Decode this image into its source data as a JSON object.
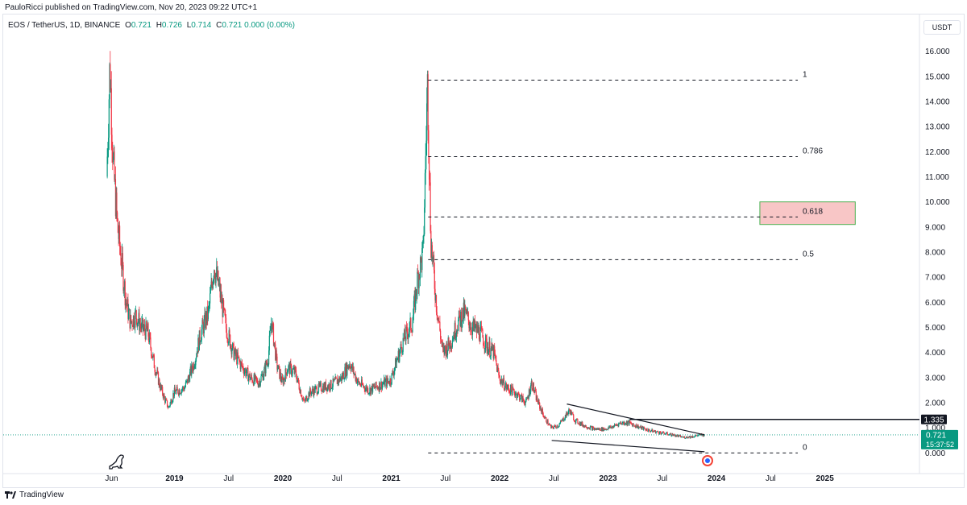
{
  "header": {
    "published": "PauloRicci published on TradingView.com, Nov 20, 2023 09:22 UTC+1"
  },
  "legend": {
    "symbol": "EOS / TetherUS, 1D, BINANCE",
    "o_label": "O",
    "o_value": "0.721",
    "h_label": "H",
    "h_value": "0.726",
    "l_label": "L",
    "l_value": "0.714",
    "c_label": "C",
    "c_value": "0.721",
    "change": "0.000 (0.00%)"
  },
  "currency": "USDT",
  "footer": {
    "brand": "TradingView"
  },
  "colors": {
    "up": "#089981",
    "down": "#f23645",
    "fib_zone_fill": "#f8c6c6",
    "fib_zone_border": "#4caf50",
    "price_tag": "#089981",
    "level_tag": "#131722"
  },
  "chart_data": {
    "type": "candlestick",
    "y_ticks": [
      "0.000",
      "1.000",
      "2.000",
      "3.000",
      "4.000",
      "5.000",
      "6.000",
      "7.000",
      "8.000",
      "9.000",
      "10.000",
      "11.000",
      "12.000",
      "13.000",
      "14.000",
      "15.000",
      "16.000"
    ],
    "ylim": [
      -0.5,
      16.5
    ],
    "x_ticks": [
      {
        "label": "Jun",
        "date": 2018.42,
        "bold": false
      },
      {
        "label": "2019",
        "date": 2019.0,
        "bold": true
      },
      {
        "label": "Jul",
        "date": 2019.5,
        "bold": false
      },
      {
        "label": "2020",
        "date": 2020.0,
        "bold": true
      },
      {
        "label": "Jul",
        "date": 2020.5,
        "bold": false
      },
      {
        "label": "2021",
        "date": 2021.0,
        "bold": true
      },
      {
        "label": "Jul",
        "date": 2021.5,
        "bold": false
      },
      {
        "label": "2022",
        "date": 2022.0,
        "bold": true
      },
      {
        "label": "Jul",
        "date": 2022.5,
        "bold": false
      },
      {
        "label": "2023",
        "date": 2023.0,
        "bold": true
      },
      {
        "label": "Jul",
        "date": 2023.5,
        "bold": false
      },
      {
        "label": "2024",
        "date": 2024.0,
        "bold": true
      },
      {
        "label": "Jul",
        "date": 2024.5,
        "bold": false
      },
      {
        "label": "2025",
        "date": 2025.0,
        "bold": true
      }
    ],
    "xlim": [
      2017.45,
      2025.85
    ],
    "price_path": [
      [
        2018.38,
        11.0
      ],
      [
        2018.41,
        15.5
      ],
      [
        2018.44,
        11.5
      ],
      [
        2018.48,
        9.0
      ],
      [
        2018.52,
        7.5
      ],
      [
        2018.56,
        6.0
      ],
      [
        2018.6,
        5.2
      ],
      [
        2018.65,
        5.5
      ],
      [
        2018.7,
        5.0
      ],
      [
        2018.76,
        4.8
      ],
      [
        2018.82,
        3.5
      ],
      [
        2018.87,
        2.7
      ],
      [
        2018.91,
        2.2
      ],
      [
        2018.95,
        1.8
      ],
      [
        2019.0,
        2.4
      ],
      [
        2019.05,
        2.5
      ],
      [
        2019.1,
        2.6
      ],
      [
        2019.18,
        3.5
      ],
      [
        2019.25,
        4.8
      ],
      [
        2019.32,
        5.6
      ],
      [
        2019.37,
        7.5
      ],
      [
        2019.42,
        6.5
      ],
      [
        2019.48,
        5.0
      ],
      [
        2019.55,
        4.0
      ],
      [
        2019.62,
        3.5
      ],
      [
        2019.7,
        3.0
      ],
      [
        2019.78,
        2.8
      ],
      [
        2019.83,
        3.2
      ],
      [
        2019.87,
        3.8
      ],
      [
        2019.9,
        5.3
      ],
      [
        2019.95,
        3.5
      ],
      [
        2020.0,
        2.8
      ],
      [
        2020.05,
        3.4
      ],
      [
        2020.12,
        3.2
      ],
      [
        2020.2,
        2.0
      ],
      [
        2020.25,
        2.4
      ],
      [
        2020.35,
        2.6
      ],
      [
        2020.45,
        2.7
      ],
      [
        2020.55,
        3.0
      ],
      [
        2020.62,
        3.6
      ],
      [
        2020.7,
        2.8
      ],
      [
        2020.8,
        2.5
      ],
      [
        2020.9,
        2.7
      ],
      [
        2021.0,
        2.9
      ],
      [
        2021.05,
        3.6
      ],
      [
        2021.12,
        4.5
      ],
      [
        2021.2,
        5.2
      ],
      [
        2021.25,
        7.0
      ],
      [
        2021.3,
        8.0
      ],
      [
        2021.34,
        14.8
      ],
      [
        2021.37,
        8.5
      ],
      [
        2021.42,
        6.0
      ],
      [
        2021.48,
        4.0
      ],
      [
        2021.55,
        4.4
      ],
      [
        2021.62,
        5.2
      ],
      [
        2021.68,
        5.6
      ],
      [
        2021.75,
        5.0
      ],
      [
        2021.82,
        4.8
      ],
      [
        2021.9,
        4.2
      ],
      [
        2021.95,
        4.0
      ],
      [
        2022.0,
        3.0
      ],
      [
        2022.07,
        2.6
      ],
      [
        2022.15,
        2.4
      ],
      [
        2022.2,
        2.2
      ],
      [
        2022.25,
        2.0
      ],
      [
        2022.3,
        2.8
      ],
      [
        2022.35,
        2.1
      ],
      [
        2022.42,
        1.4
      ],
      [
        2022.48,
        1.0
      ],
      [
        2022.55,
        1.1
      ],
      [
        2022.6,
        1.4
      ],
      [
        2022.65,
        1.7
      ],
      [
        2022.7,
        1.3
      ],
      [
        2022.78,
        1.1
      ],
      [
        2022.88,
        0.95
      ],
      [
        2022.98,
        0.95
      ],
      [
        2023.05,
        1.05
      ],
      [
        2023.12,
        1.2
      ],
      [
        2023.2,
        1.2
      ],
      [
        2023.28,
        1.05
      ],
      [
        2023.38,
        0.9
      ],
      [
        2023.5,
        0.8
      ],
      [
        2023.6,
        0.72
      ],
      [
        2023.7,
        0.62
      ],
      [
        2023.78,
        0.65
      ],
      [
        2023.86,
        0.72
      ],
      [
        2023.89,
        0.721
      ]
    ],
    "fib_levels": [
      {
        "label": "1",
        "value": 14.85
      },
      {
        "label": "0.786",
        "value": 11.8
      },
      {
        "label": "0.618",
        "value": 9.4
      },
      {
        "label": "0.5",
        "value": 7.7
      },
      {
        "label": "0",
        "value": 0.0
      }
    ],
    "fib_x_range": [
      2021.34,
      2024.75
    ],
    "fib_zone": {
      "x_from": 2024.4,
      "x_to": 2025.28,
      "y_from": 9.1,
      "y_to": 10.0
    },
    "level_line": {
      "value": 1.335,
      "x_from": 2023.2
    },
    "wedge": {
      "upper": [
        [
          2022.62,
          1.95
        ],
        [
          2023.89,
          0.72
        ]
      ],
      "lower": [
        [
          2022.48,
          0.5
        ],
        [
          2023.89,
          0.05
        ]
      ]
    },
    "last_price": {
      "value": 0.721,
      "label": "0.721",
      "countdown": "15:37:52"
    },
    "level_tag": {
      "label": "1.335"
    }
  }
}
